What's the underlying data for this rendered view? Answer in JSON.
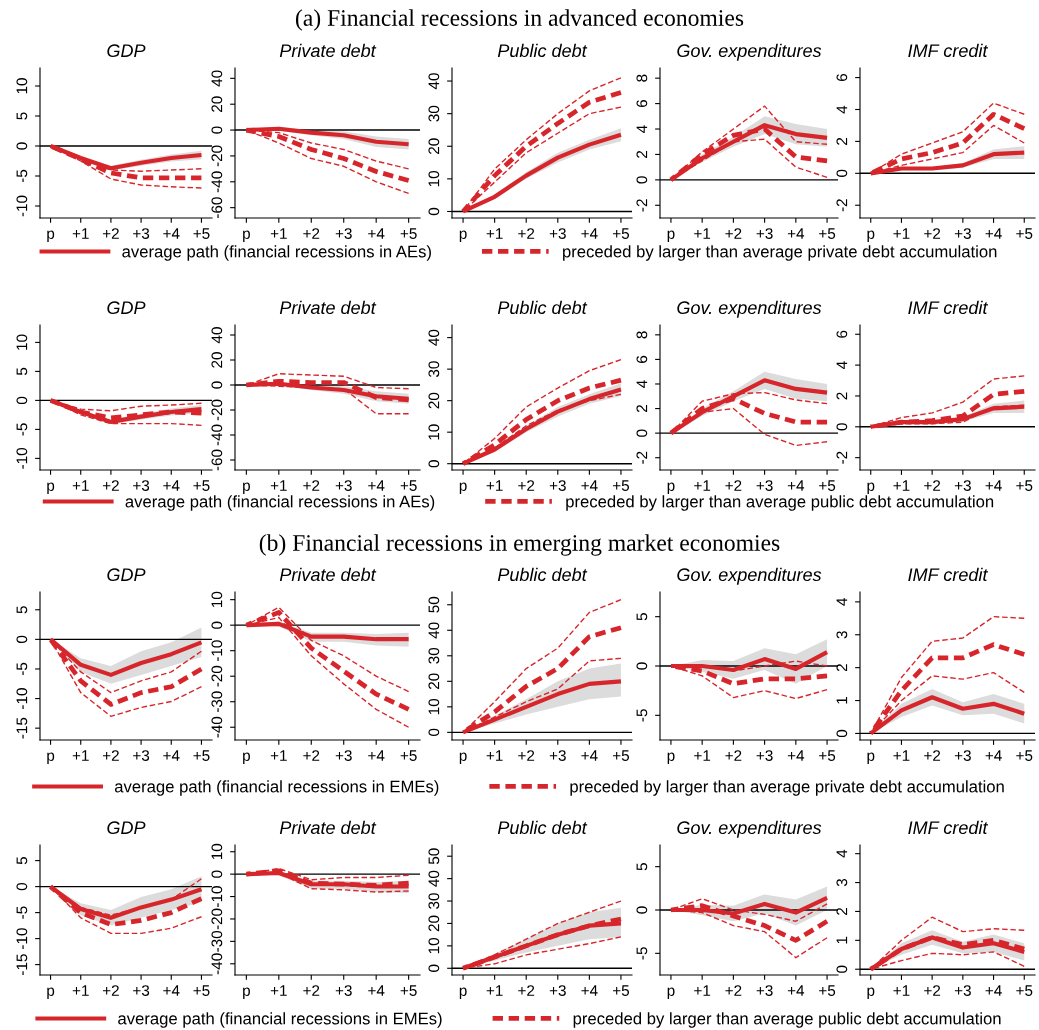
{
  "chart_data": [
    {
      "type": "line",
      "title": "GDP",
      "annotations": [
        "(a) Financial recessions in advanced economies"
      ],
      "legend": "bottom",
      "categories": [
        "p",
        "+1",
        "+2",
        "+3",
        "+4",
        "+5"
      ],
      "ylim": [
        -12,
        13
      ],
      "yticks": [
        -10,
        -5,
        0,
        5,
        10
      ],
      "ref_lines": [
        {
          "axis": "y",
          "value": 0,
          "color": "#000000"
        }
      ],
      "series": [
        {
          "name": "average path (financial recessions in AEs)",
          "color": "#d7262b",
          "line_style": "solid",
          "values": [
            0,
            -2,
            -3.7,
            -2.8,
            -2,
            -1.5
          ],
          "lower": [
            0,
            -2.3,
            -4.1,
            -3.3,
            -2.6,
            -2.2
          ],
          "upper": [
            0,
            -1.7,
            -3.3,
            -2.3,
            -1.4,
            -0.8
          ]
        },
        {
          "name": "preceded by larger than average private debt accumulation",
          "color": "#d7262b",
          "line_style": "dashed",
          "values": [
            0,
            -2.2,
            -4.5,
            -5.3,
            -5.3,
            -5.3
          ]
        },
        {
          "color": "#d7262b",
          "line_style": "dotted",
          "values": [
            0,
            -2,
            -4,
            -4.2,
            -4,
            -3.8
          ]
        },
        {
          "color": "#d7262b",
          "line_style": "dotted",
          "values": [
            0,
            -2.5,
            -5.5,
            -6.5,
            -6.8,
            -7
          ]
        }
      ]
    },
    {
      "type": "line",
      "title": "Private debt",
      "categories": [
        "p",
        "+1",
        "+2",
        "+3",
        "+4",
        "+5"
      ],
      "ylim": [
        -68,
        48
      ],
      "yticks": [
        -60,
        -40,
        -20,
        0,
        20,
        40
      ],
      "ref_lines": [
        {
          "axis": "y",
          "value": 0,
          "color": "#000000"
        }
      ],
      "series": [
        {
          "color": "#d7262b",
          "line_style": "solid",
          "values": [
            0,
            1,
            -2,
            -4,
            -9,
            -11
          ],
          "lower": [
            0,
            -0.5,
            -4,
            -7,
            -13,
            -15
          ],
          "upper": [
            0,
            2.5,
            0,
            -1,
            -5,
            -7
          ]
        },
        {
          "color": "#d7262b",
          "line_style": "dashed",
          "values": [
            0,
            -5,
            -15,
            -22,
            -32,
            -39
          ]
        },
        {
          "color": "#d7262b",
          "line_style": "dotted",
          "values": [
            0,
            -2,
            -10,
            -15,
            -24,
            -30
          ]
        },
        {
          "color": "#d7262b",
          "line_style": "dotted",
          "values": [
            0,
            -10,
            -22,
            -28,
            -40,
            -49
          ]
        }
      ]
    },
    {
      "type": "line",
      "title": "Public debt",
      "categories": [
        "p",
        "+1",
        "+2",
        "+3",
        "+4",
        "+5"
      ],
      "ylim": [
        -2,
        44
      ],
      "yticks": [
        0,
        10,
        20,
        30,
        40
      ],
      "ref_lines": [
        {
          "axis": "y",
          "value": 0,
          "color": "#000000"
        }
      ],
      "series": [
        {
          "color": "#d7262b",
          "line_style": "solid",
          "values": [
            0,
            4.5,
            11,
            16.5,
            20.5,
            23.5
          ],
          "lower": [
            0,
            3.8,
            10,
            15,
            19,
            21.5
          ],
          "upper": [
            0,
            5.2,
            12,
            18,
            22,
            25.5
          ]
        },
        {
          "color": "#d7262b",
          "line_style": "dashed",
          "values": [
            0,
            11,
            20,
            27,
            33.5,
            36.5
          ]
        },
        {
          "color": "#d7262b",
          "line_style": "dotted",
          "values": [
            0,
            13,
            22,
            30,
            37,
            41
          ]
        },
        {
          "color": "#d7262b",
          "line_style": "dotted",
          "values": [
            0,
            9,
            18,
            24,
            30,
            32
          ]
        }
      ]
    },
    {
      "type": "line",
      "title": "Gov. expenditures",
      "categories": [
        "p",
        "+1",
        "+2",
        "+3",
        "+4",
        "+5"
      ],
      "ylim": [
        -3,
        8.8
      ],
      "yticks": [
        -2,
        0,
        2,
        4,
        6,
        8
      ],
      "ref_lines": [
        {
          "axis": "y",
          "value": 0,
          "color": "#000000"
        }
      ],
      "series": [
        {
          "color": "#d7262b",
          "line_style": "solid",
          "values": [
            0,
            1.7,
            3,
            4.3,
            3.6,
            3.3
          ],
          "lower": [
            0,
            1.4,
            2.6,
            3.6,
            2.8,
            2.6
          ],
          "upper": [
            0,
            2,
            3.4,
            5,
            4.4,
            4
          ]
        },
        {
          "color": "#d7262b",
          "line_style": "dashed",
          "values": [
            0,
            2,
            3.5,
            4,
            1.8,
            1.5
          ]
        },
        {
          "color": "#d7262b",
          "line_style": "dotted",
          "values": [
            0,
            2.2,
            4,
            5.8,
            3,
            2.8
          ]
        },
        {
          "color": "#d7262b",
          "line_style": "dotted",
          "values": [
            0,
            1.5,
            3,
            3.2,
            1,
            0.2
          ]
        }
      ]
    },
    {
      "type": "line",
      "title": "IMF credit",
      "categories": [
        "p",
        "+1",
        "+2",
        "+3",
        "+4",
        "+5"
      ],
      "ylim": [
        -2.8,
        6.6
      ],
      "yticks": [
        -2,
        0,
        2,
        4,
        6
      ],
      "ref_lines": [
        {
          "axis": "y",
          "value": 0,
          "color": "#000000"
        }
      ],
      "series": [
        {
          "color": "#d7262b",
          "line_style": "solid",
          "values": [
            0,
            0.3,
            0.3,
            0.5,
            1.2,
            1.3
          ],
          "lower": [
            0,
            0.2,
            0.2,
            0.35,
            0.9,
            0.9
          ],
          "upper": [
            0,
            0.4,
            0.4,
            0.65,
            1.5,
            1.7
          ]
        },
        {
          "color": "#d7262b",
          "line_style": "dashed",
          "values": [
            0,
            0.9,
            1.3,
            1.9,
            3.7,
            2.8
          ]
        },
        {
          "color": "#d7262b",
          "line_style": "dotted",
          "values": [
            0,
            1.2,
            1.9,
            2.6,
            4.4,
            3.7
          ]
        },
        {
          "color": "#d7262b",
          "line_style": "dotted",
          "values": [
            0,
            0.5,
            0.9,
            1.3,
            3,
            1.9
          ]
        }
      ]
    },
    {
      "type": "line",
      "title": "GDP",
      "legend": "bottom",
      "categories": [
        "p",
        "+1",
        "+2",
        "+3",
        "+4",
        "+5"
      ],
      "ylim": [
        -12,
        13
      ],
      "yticks": [
        -10,
        -5,
        0,
        5,
        10
      ],
      "ref_lines": [
        {
          "axis": "y",
          "value": 0,
          "color": "#000000"
        }
      ],
      "series": [
        {
          "name": "average path (financial recessions in AEs)",
          "color": "#d7262b",
          "line_style": "solid",
          "values": [
            0,
            -2,
            -3.7,
            -2.8,
            -2,
            -1.5
          ],
          "lower": [
            0,
            -2.3,
            -4.1,
            -3.3,
            -2.6,
            -2.2
          ],
          "upper": [
            0,
            -1.7,
            -3.3,
            -2.3,
            -1.4,
            -0.8
          ]
        },
        {
          "name": "preceded by larger than average public debt accumulation",
          "color": "#d7262b",
          "line_style": "dashed",
          "values": [
            0,
            -2,
            -3,
            -2.5,
            -2,
            -2.2
          ]
        },
        {
          "color": "#d7262b",
          "line_style": "dotted",
          "values": [
            0,
            -1.5,
            -1.8,
            -1,
            -0.8,
            -0.5
          ]
        },
        {
          "color": "#d7262b",
          "line_style": "dotted",
          "values": [
            0,
            -2.5,
            -4,
            -4,
            -4,
            -4.3
          ]
        }
      ]
    },
    {
      "type": "line",
      "title": "Private debt",
      "categories": [
        "p",
        "+1",
        "+2",
        "+3",
        "+4",
        "+5"
      ],
      "ylim": [
        -68,
        48
      ],
      "yticks": [
        -60,
        -40,
        -20,
        0,
        20,
        40
      ],
      "ref_lines": [
        {
          "axis": "y",
          "value": 0,
          "color": "#000000"
        }
      ],
      "series": [
        {
          "color": "#d7262b",
          "line_style": "solid",
          "values": [
            0,
            1,
            -2,
            -4,
            -9,
            -11
          ],
          "lower": [
            0,
            -0.5,
            -4,
            -7,
            -13,
            -15
          ],
          "upper": [
            0,
            2.5,
            0,
            -1,
            -5,
            -7
          ]
        },
        {
          "color": "#d7262b",
          "line_style": "dashed",
          "values": [
            0,
            3,
            2,
            2,
            -10,
            -12
          ]
        },
        {
          "color": "#d7262b",
          "line_style": "dotted",
          "values": [
            0,
            9,
            8,
            7,
            -2,
            -3
          ]
        },
        {
          "color": "#d7262b",
          "line_style": "dotted",
          "values": [
            0,
            -1,
            -2,
            -3,
            -23,
            -23
          ]
        }
      ]
    },
    {
      "type": "line",
      "title": "Public debt",
      "categories": [
        "p",
        "+1",
        "+2",
        "+3",
        "+4",
        "+5"
      ],
      "ylim": [
        -2,
        44
      ],
      "yticks": [
        0,
        10,
        20,
        30,
        40
      ],
      "ref_lines": [
        {
          "axis": "y",
          "value": 0,
          "color": "#000000"
        }
      ],
      "series": [
        {
          "color": "#d7262b",
          "line_style": "solid",
          "values": [
            0,
            4.5,
            11,
            16.5,
            20.5,
            23.5
          ],
          "lower": [
            0,
            3.8,
            10,
            15,
            19,
            21.5
          ],
          "upper": [
            0,
            5.2,
            12,
            18,
            22,
            25.5
          ]
        },
        {
          "color": "#d7262b",
          "line_style": "dashed",
          "values": [
            0,
            6,
            14,
            20,
            24,
            26.5
          ]
        },
        {
          "color": "#d7262b",
          "line_style": "dotted",
          "values": [
            0,
            8,
            18,
            24,
            29.5,
            33
          ]
        },
        {
          "color": "#d7262b",
          "line_style": "dotted",
          "values": [
            0,
            5,
            12,
            17,
            20,
            22
          ]
        }
      ]
    },
    {
      "type": "line",
      "title": "Gov. expenditures",
      "categories": [
        "p",
        "+1",
        "+2",
        "+3",
        "+4",
        "+5"
      ],
      "ylim": [
        -3,
        8.8
      ],
      "yticks": [
        -2,
        0,
        2,
        4,
        6,
        8
      ],
      "ref_lines": [
        {
          "axis": "y",
          "value": 0,
          "color": "#000000"
        }
      ],
      "series": [
        {
          "color": "#d7262b",
          "line_style": "solid",
          "values": [
            0,
            1.7,
            3,
            4.3,
            3.6,
            3.3
          ],
          "lower": [
            0,
            1.4,
            2.6,
            3.6,
            2.8,
            2.6
          ],
          "upper": [
            0,
            2,
            3.4,
            5,
            4.4,
            4
          ]
        },
        {
          "color": "#d7262b",
          "line_style": "dashed",
          "values": [
            0,
            2,
            2.8,
            1.6,
            0.9,
            0.9
          ]
        },
        {
          "color": "#d7262b",
          "line_style": "dotted",
          "values": [
            0,
            2.6,
            3.2,
            3.3,
            2.7,
            2.4
          ]
        },
        {
          "color": "#d7262b",
          "line_style": "dotted",
          "values": [
            0,
            1.7,
            2,
            -0.1,
            -1,
            -0.7
          ]
        }
      ]
    },
    {
      "type": "line",
      "title": "IMF credit",
      "categories": [
        "p",
        "+1",
        "+2",
        "+3",
        "+4",
        "+5"
      ],
      "ylim": [
        -2.8,
        6.6
      ],
      "yticks": [
        -2,
        0,
        2,
        4,
        6
      ],
      "ref_lines": [
        {
          "axis": "y",
          "value": 0,
          "color": "#000000"
        }
      ],
      "series": [
        {
          "color": "#d7262b",
          "line_style": "solid",
          "values": [
            0,
            0.3,
            0.3,
            0.5,
            1.2,
            1.3
          ],
          "lower": [
            0,
            0.2,
            0.2,
            0.35,
            0.9,
            0.9
          ],
          "upper": [
            0,
            0.4,
            0.4,
            0.65,
            1.5,
            1.7
          ]
        },
        {
          "color": "#d7262b",
          "line_style": "dashed",
          "values": [
            0,
            0.3,
            0.4,
            0.7,
            2.1,
            2.3
          ]
        },
        {
          "color": "#d7262b",
          "line_style": "dotted",
          "values": [
            0,
            0.6,
            0.9,
            1.6,
            3.1,
            3.3
          ]
        },
        {
          "color": "#d7262b",
          "line_style": "dotted",
          "values": [
            0,
            0.2,
            0.2,
            0.3,
            1.3,
            1.4
          ]
        }
      ]
    },
    {
      "type": "line",
      "title": "GDP",
      "annotations": [
        "(b) Financial recessions in emerging market economies"
      ],
      "legend": "bottom",
      "categories": [
        "p",
        "+1",
        "+2",
        "+3",
        "+4",
        "+5"
      ],
      "ylim": [
        -17,
        8
      ],
      "yticks": [
        -15,
        -10,
        -5,
        0,
        5
      ],
      "ref_lines": [
        {
          "axis": "y",
          "value": 0,
          "color": "#000000"
        }
      ],
      "series": [
        {
          "name": "average path (financial recessions in EMEs)",
          "color": "#d7262b",
          "line_style": "solid",
          "values": [
            0,
            -4.3,
            -6,
            -4,
            -2.5,
            -0.5
          ],
          "lower": [
            0,
            -5.5,
            -7.5,
            -6,
            -4.5,
            -3
          ],
          "upper": [
            0,
            -3.2,
            -4.5,
            -2,
            -0.5,
            2
          ]
        },
        {
          "name": "preceded by larger than average private debt accumulation",
          "color": "#d7262b",
          "line_style": "dashed",
          "values": [
            0,
            -7,
            -11,
            -9,
            -8,
            -5
          ]
        },
        {
          "color": "#d7262b",
          "line_style": "dotted",
          "values": [
            0,
            -5.5,
            -9,
            -7,
            -5.5,
            -2
          ]
        },
        {
          "color": "#d7262b",
          "line_style": "dotted",
          "values": [
            0,
            -9,
            -13,
            -11.5,
            -10.5,
            -8
          ]
        }
      ]
    },
    {
      "type": "line",
      "title": "Private debt",
      "categories": [
        "p",
        "+1",
        "+2",
        "+3",
        "+4",
        "+5"
      ],
      "ylim": [
        -45,
        13
      ],
      "yticks": [
        -40,
        -30,
        -20,
        -10,
        0,
        10
      ],
      "ref_lines": [
        {
          "axis": "y",
          "value": 0,
          "color": "#000000"
        }
      ],
      "series": [
        {
          "color": "#d7262b",
          "line_style": "solid",
          "values": [
            0,
            0.5,
            -4.5,
            -4.5,
            -5.5,
            -5.5
          ],
          "lower": [
            0,
            -0.5,
            -6.5,
            -6.5,
            -8,
            -8.5
          ],
          "upper": [
            0,
            1.5,
            -3,
            -3,
            -3.5,
            -3
          ]
        },
        {
          "color": "#d7262b",
          "line_style": "dashed",
          "values": [
            0,
            5,
            -9,
            -18,
            -27,
            -33
          ]
        },
        {
          "color": "#d7262b",
          "line_style": "dotted",
          "values": [
            0,
            7,
            -6,
            -12,
            -20,
            -26
          ]
        },
        {
          "color": "#d7262b",
          "line_style": "dotted",
          "values": [
            0,
            3,
            -12,
            -23,
            -33,
            -40
          ]
        }
      ]
    },
    {
      "type": "line",
      "title": "Public debt",
      "categories": [
        "p",
        "+1",
        "+2",
        "+3",
        "+4",
        "+5"
      ],
      "ylim": [
        -3,
        55
      ],
      "yticks": [
        0,
        10,
        20,
        30,
        40,
        50
      ],
      "ref_lines": [
        {
          "axis": "y",
          "value": 0,
          "color": "#000000"
        }
      ],
      "series": [
        {
          "color": "#d7262b",
          "line_style": "solid",
          "values": [
            0,
            5,
            10,
            15,
            19,
            20
          ],
          "lower": [
            0,
            3.5,
            7,
            10,
            13,
            14
          ],
          "upper": [
            0,
            6.5,
            13,
            20,
            25,
            27
          ]
        },
        {
          "color": "#d7262b",
          "line_style": "dashed",
          "values": [
            0,
            8,
            18,
            25,
            37.5,
            41
          ]
        },
        {
          "color": "#d7262b",
          "line_style": "dotted",
          "values": [
            0,
            12,
            25,
            33,
            47,
            52
          ]
        },
        {
          "color": "#d7262b",
          "line_style": "dotted",
          "values": [
            0,
            6,
            12,
            17,
            28,
            29
          ]
        }
      ]
    },
    {
      "type": "line",
      "title": "Gov. expenditures",
      "categories": [
        "p",
        "+1",
        "+2",
        "+3",
        "+4",
        "+5"
      ],
      "ylim": [
        -7.5,
        7.5
      ],
      "yticks": [
        -5,
        0,
        5
      ],
      "ref_lines": [
        {
          "axis": "y",
          "value": 0,
          "color": "#000000"
        }
      ],
      "series": [
        {
          "color": "#d7262b",
          "line_style": "solid",
          "values": [
            0,
            0,
            -0.4,
            0.7,
            -0.3,
            1.4
          ],
          "lower": [
            0,
            -0.6,
            -1.3,
            -0.4,
            -1.8,
            0
          ],
          "upper": [
            0,
            0.6,
            0.5,
            1.8,
            1.2,
            2.7
          ]
        },
        {
          "color": "#d7262b",
          "line_style": "dashed",
          "values": [
            0,
            -0.5,
            -1.8,
            -1.3,
            -1.3,
            -1
          ]
        },
        {
          "color": "#d7262b",
          "line_style": "dotted",
          "values": [
            0,
            0,
            -0.5,
            0,
            0.5,
            0
          ]
        },
        {
          "color": "#d7262b",
          "line_style": "dotted",
          "values": [
            0,
            -1,
            -3.2,
            -2.5,
            -3.3,
            -2.4
          ]
        }
      ]
    },
    {
      "type": "line",
      "title": "IMF credit",
      "categories": [
        "p",
        "+1",
        "+2",
        "+3",
        "+4",
        "+5"
      ],
      "ylim": [
        -0.2,
        4.3
      ],
      "yticks": [
        0,
        1,
        2,
        3,
        4
      ],
      "ref_lines": [
        {
          "axis": "y",
          "value": 0,
          "color": "#000000"
        }
      ],
      "series": [
        {
          "color": "#d7262b",
          "line_style": "solid",
          "values": [
            0,
            0.7,
            1.1,
            0.75,
            0.9,
            0.6
          ],
          "lower": [
            0,
            0.5,
            0.85,
            0.55,
            0.6,
            0.3
          ],
          "upper": [
            0,
            0.9,
            1.35,
            0.95,
            1.2,
            0.9
          ]
        },
        {
          "color": "#d7262b",
          "line_style": "dashed",
          "values": [
            0,
            1.3,
            2.3,
            2.3,
            2.7,
            2.4
          ]
        },
        {
          "color": "#d7262b",
          "line_style": "dotted",
          "values": [
            0,
            1.7,
            2.8,
            2.9,
            3.55,
            3.5
          ]
        },
        {
          "color": "#d7262b",
          "line_style": "dotted",
          "values": [
            0,
            1,
            1.75,
            1.65,
            1.85,
            1.25
          ]
        }
      ]
    },
    {
      "type": "line",
      "title": "GDP",
      "legend": "bottom",
      "categories": [
        "p",
        "+1",
        "+2",
        "+3",
        "+4",
        "+5"
      ],
      "ylim": [
        -17,
        8
      ],
      "yticks": [
        -15,
        -10,
        -5,
        0,
        5
      ],
      "ref_lines": [
        {
          "axis": "y",
          "value": 0,
          "color": "#000000"
        }
      ],
      "series": [
        {
          "name": "average path (financial recessions in EMEs)",
          "color": "#d7262b",
          "line_style": "solid",
          "values": [
            0,
            -4.3,
            -6,
            -4,
            -2.5,
            -0.5
          ],
          "lower": [
            0,
            -5.5,
            -7.5,
            -6,
            -4.5,
            -3
          ],
          "upper": [
            0,
            -3.2,
            -4.5,
            -2,
            -0.5,
            2
          ]
        },
        {
          "name": "preceded by larger than average public debt accumulation",
          "color": "#d7262b",
          "line_style": "dashed",
          "values": [
            0,
            -5,
            -7.3,
            -6.5,
            -5,
            -2.3
          ]
        },
        {
          "color": "#d7262b",
          "line_style": "dotted",
          "values": [
            0,
            -4,
            -5.5,
            -4,
            -2.5,
            1.5
          ]
        },
        {
          "color": "#d7262b",
          "line_style": "dotted",
          "values": [
            0,
            -6,
            -9,
            -9,
            -8,
            -5.8
          ]
        }
      ]
    },
    {
      "type": "line",
      "title": "Private debt",
      "categories": [
        "p",
        "+1",
        "+2",
        "+3",
        "+4",
        "+5"
      ],
      "ylim": [
        -45,
        13
      ],
      "yticks": [
        -40,
        -30,
        -20,
        -10,
        0,
        10
      ],
      "ref_lines": [
        {
          "axis": "y",
          "value": 0,
          "color": "#000000"
        }
      ],
      "series": [
        {
          "color": "#d7262b",
          "line_style": "solid",
          "values": [
            0,
            0.5,
            -4.5,
            -4.5,
            -5.5,
            -5.5
          ],
          "lower": [
            0,
            -0.5,
            -6.5,
            -6.5,
            -8,
            -8.5
          ],
          "upper": [
            0,
            1.5,
            -3,
            -3,
            -3.5,
            -3
          ]
        },
        {
          "color": "#d7262b",
          "line_style": "dashed",
          "values": [
            0,
            1.5,
            -4,
            -4.5,
            -5,
            -4
          ]
        },
        {
          "color": "#d7262b",
          "line_style": "dotted",
          "values": [
            0,
            2.5,
            -2.5,
            -1.5,
            -1.5,
            -0.5
          ]
        },
        {
          "color": "#d7262b",
          "line_style": "dotted",
          "values": [
            0,
            0.5,
            -6.5,
            -7,
            -8,
            -7.5
          ]
        }
      ]
    },
    {
      "type": "line",
      "title": "Public debt",
      "categories": [
        "p",
        "+1",
        "+2",
        "+3",
        "+4",
        "+5"
      ],
      "ylim": [
        -3,
        55
      ],
      "yticks": [
        0,
        10,
        20,
        30,
        40,
        50
      ],
      "ref_lines": [
        {
          "axis": "y",
          "value": 0,
          "color": "#000000"
        }
      ],
      "series": [
        {
          "color": "#d7262b",
          "line_style": "solid",
          "values": [
            0,
            5,
            10,
            15,
            19,
            20
          ],
          "lower": [
            0,
            3.5,
            7,
            10,
            13,
            14
          ],
          "upper": [
            0,
            6.5,
            13,
            20,
            25,
            27
          ]
        },
        {
          "color": "#d7262b",
          "line_style": "dashed",
          "values": [
            0,
            5,
            10,
            15,
            19,
            22
          ]
        },
        {
          "color": "#d7262b",
          "line_style": "dotted",
          "values": [
            0,
            6,
            13,
            20,
            25,
            30
          ]
        },
        {
          "color": "#d7262b",
          "line_style": "dotted",
          "values": [
            0,
            2,
            6,
            8.5,
            11,
            14
          ]
        }
      ]
    },
    {
      "type": "line",
      "title": "Gov. expenditures",
      "categories": [
        "p",
        "+1",
        "+2",
        "+3",
        "+4",
        "+5"
      ],
      "ylim": [
        -7.5,
        7.5
      ],
      "yticks": [
        -5,
        0,
        5
      ],
      "ref_lines": [
        {
          "axis": "y",
          "value": 0,
          "color": "#000000"
        }
      ],
      "series": [
        {
          "color": "#d7262b",
          "line_style": "solid",
          "values": [
            0,
            0,
            -0.4,
            0.7,
            -0.3,
            1.4
          ],
          "lower": [
            0,
            -0.6,
            -1.3,
            -0.4,
            -1.8,
            0
          ],
          "upper": [
            0,
            0.6,
            0.5,
            1.8,
            1.2,
            2.7
          ]
        },
        {
          "color": "#d7262b",
          "line_style": "dashed",
          "values": [
            0,
            0.5,
            -0.7,
            -1.8,
            -3.5,
            -1.3
          ]
        },
        {
          "color": "#d7262b",
          "line_style": "dotted",
          "values": [
            0,
            1.3,
            0,
            -0.5,
            -1.3,
            0.7
          ]
        },
        {
          "color": "#d7262b",
          "line_style": "dotted",
          "values": [
            0,
            -0.3,
            -1.8,
            -2.5,
            -5.5,
            -3.2
          ]
        }
      ]
    },
    {
      "type": "line",
      "title": "IMF credit",
      "categories": [
        "p",
        "+1",
        "+2",
        "+3",
        "+4",
        "+5"
      ],
      "ylim": [
        -0.2,
        4.3
      ],
      "yticks": [
        0,
        1,
        2,
        3,
        4
      ],
      "ref_lines": [
        {
          "axis": "y",
          "value": 0,
          "color": "#000000"
        }
      ],
      "series": [
        {
          "color": "#d7262b",
          "line_style": "solid",
          "values": [
            0,
            0.7,
            1.1,
            0.75,
            0.9,
            0.6
          ],
          "lower": [
            0,
            0.5,
            0.85,
            0.55,
            0.6,
            0.3
          ],
          "upper": [
            0,
            0.9,
            1.35,
            0.95,
            1.2,
            0.9
          ]
        },
        {
          "color": "#d7262b",
          "line_style": "dashed",
          "values": [
            0,
            0.7,
            1.1,
            0.85,
            1,
            0.7
          ]
        },
        {
          "color": "#d7262b",
          "line_style": "dotted",
          "values": [
            0,
            1,
            1.8,
            1.3,
            1.4,
            1.35
          ]
        },
        {
          "color": "#d7262b",
          "line_style": "dotted",
          "values": [
            0,
            0.3,
            0.55,
            0.5,
            0.6,
            0.1
          ]
        }
      ]
    }
  ]
}
